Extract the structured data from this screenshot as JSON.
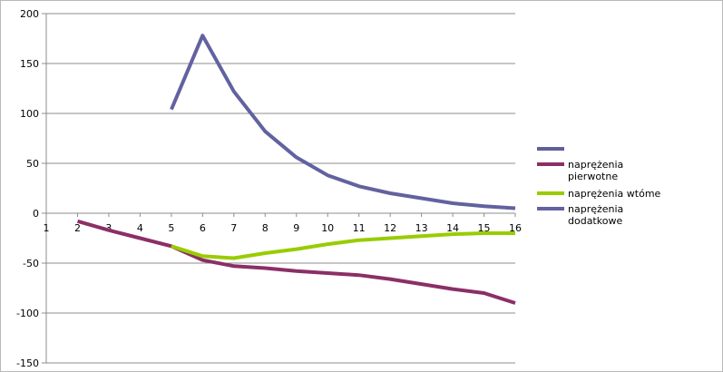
{
  "chart_data": {
    "type": "line",
    "title": "",
    "xlabel": "",
    "ylabel": "",
    "categories": [
      "1",
      "2",
      "3",
      "4",
      "5",
      "6",
      "7",
      "8",
      "9",
      "10",
      "11",
      "12",
      "13",
      "14",
      "15",
      "16"
    ],
    "ylim": [
      -150,
      200
    ],
    "yticks": [
      200,
      150,
      100,
      50,
      0,
      -50,
      -100,
      -150
    ],
    "grid": "horizontal",
    "legend_position": "right",
    "series": [
      {
        "name": "",
        "color": "#5f5f9a",
        "values": [
          null,
          null,
          null,
          null,
          null,
          null,
          null,
          null,
          null,
          null,
          null,
          null,
          null,
          null,
          null,
          null
        ]
      },
      {
        "name": "naprężenia pierwotne",
        "name_lines": [
          "naprężenia",
          "pierwotne"
        ],
        "color": "#8b2f66",
        "values": [
          null,
          -8,
          -17,
          -25,
          -33,
          -47,
          -53,
          -55,
          -58,
          -60,
          -62,
          -66,
          -71,
          -76,
          -80,
          -90
        ]
      },
      {
        "name": "naprężenia wtóme",
        "name_lines": [
          "naprężenia wtóme"
        ],
        "color": "#99cc00",
        "values": [
          null,
          null,
          null,
          null,
          -33,
          -43,
          -45,
          -40,
          -36,
          -31,
          -27,
          -25,
          -23,
          -21,
          -20,
          -20
        ]
      },
      {
        "name": "naprężenia dodatkowe",
        "name_lines": [
          "naprężenia",
          "dodatkowe"
        ],
        "color": "#6262a0",
        "values": [
          null,
          null,
          null,
          null,
          104,
          178,
          122,
          82,
          56,
          38,
          27,
          20,
          15,
          10,
          7,
          5
        ]
      }
    ]
  }
}
